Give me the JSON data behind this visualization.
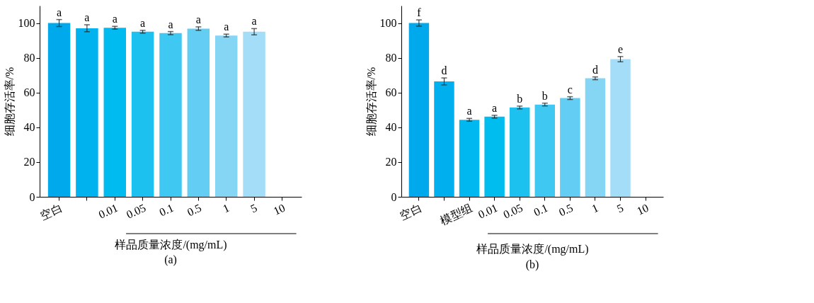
{
  "chart_data": [
    {
      "type": "bar",
      "categories": [
        "空白",
        null,
        "0.01",
        "0.05",
        "0.1",
        "0.5",
        "1",
        "5",
        "10"
      ],
      "xlabel": "样品质量浓度/(mg/mL)",
      "ylabel": "细胞存活率/%",
      "ylim": [
        0,
        110
      ],
      "yticks": [
        0,
        20,
        40,
        60,
        80,
        100
      ],
      "grid": false,
      "legend": false,
      "values": [
        100,
        97,
        97.3,
        95,
        94.2,
        96.8,
        92.8,
        95,
        null
      ],
      "errors": [
        2,
        2,
        0.8,
        0.8,
        0.9,
        1,
        0.8,
        1.8,
        null
      ],
      "colors": [
        "#00a9ec",
        "#00b2ee",
        "#00bbf0",
        "#1cc1f0",
        "#3ec8f2",
        "#63cdf4",
        "#85d5f5",
        "#a4ddf7",
        "#c0e8f9"
      ],
      "value_labels": [
        "a",
        "a",
        "a",
        "a",
        "a",
        "a",
        "a",
        "a",
        null
      ],
      "annotations": [
        "(a)"
      ]
    },
    {
      "type": "bar",
      "categories": [
        "空白",
        null,
        "模型组",
        "0.01",
        "0.05",
        "0.1",
        "0.5",
        "1",
        "5",
        "10"
      ],
      "xlabel": "样品质量浓度/(mg/mL)",
      "ylabel": "细胞存活率/%",
      "ylim": [
        0,
        110
      ],
      "yticks": [
        0,
        20,
        40,
        60,
        80,
        100
      ],
      "grid": false,
      "legend": false,
      "values": [
        100,
        66.4,
        44.3,
        46.1,
        51.4,
        53.1,
        56.8,
        68.2,
        79.2,
        null
      ],
      "errors": [
        1.8,
        2,
        0.8,
        0.8,
        0.8,
        0.8,
        0.8,
        0.8,
        1.5,
        null
      ],
      "colors": [
        "#00a9ec",
        "#00b0ee",
        "#00b8f0",
        "#00bdf0",
        "#1cc1f0",
        "#3ec8f2",
        "#63cdf4",
        "#85d5f5",
        "#a4ddf7",
        "#c0e8f9"
      ],
      "value_labels": [
        "f",
        "d",
        "a",
        "a",
        "b",
        "b",
        "c",
        "d",
        "e",
        null
      ],
      "annotations": [
        "(b)"
      ]
    }
  ]
}
